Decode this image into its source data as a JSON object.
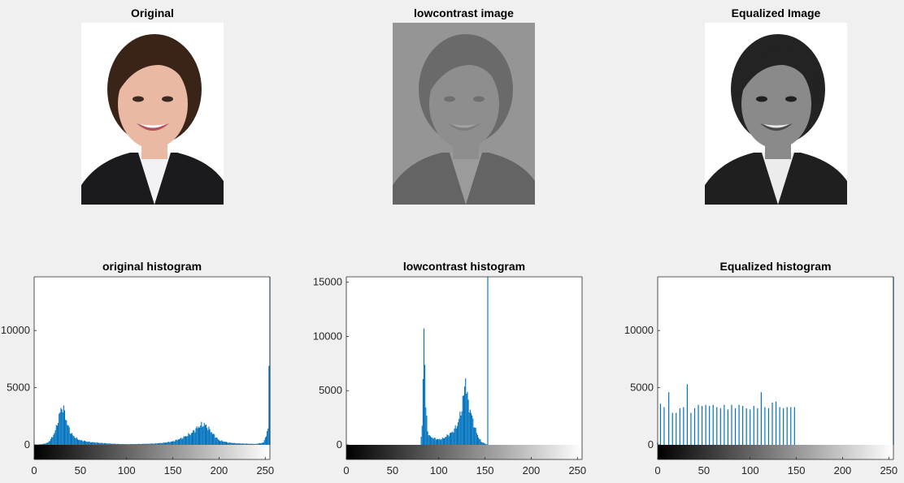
{
  "images": [
    {
      "title": "Original",
      "variant": "original"
    },
    {
      "title": "lowcontrast image",
      "variant": "lowcontrast"
    },
    {
      "title": "Equalized Image",
      "variant": "equalized"
    }
  ],
  "chart_data": [
    {
      "type": "bar",
      "title": "original histogram",
      "xlabel": "",
      "ylabel": "",
      "xlim": [
        0,
        255
      ],
      "ylim": [
        -800,
        14700
      ],
      "xticks": [
        0,
        50,
        100,
        150,
        200,
        250
      ],
      "yticks": [
        0,
        5000,
        10000
      ],
      "colorbar": "gray",
      "series": [
        {
          "points": [
            [
              0,
              0
            ],
            [
              10,
              80
            ],
            [
              15,
              200
            ],
            [
              20,
              700
            ],
            [
              24,
              1500
            ],
            [
              27,
              2500
            ],
            [
              29,
              3100
            ],
            [
              31,
              3300
            ],
            [
              33,
              2800
            ],
            [
              36,
              1800
            ],
            [
              40,
              1000
            ],
            [
              45,
              600
            ],
            [
              50,
              400
            ],
            [
              60,
              250
            ],
            [
              70,
              180
            ],
            [
              80,
              120
            ],
            [
              90,
              80
            ],
            [
              100,
              60
            ],
            [
              110,
              70
            ],
            [
              120,
              90
            ],
            [
              130,
              110
            ],
            [
              140,
              180
            ],
            [
              150,
              300
            ],
            [
              160,
              600
            ],
            [
              170,
              1000
            ],
            [
              175,
              1400
            ],
            [
              180,
              1700
            ],
            [
              184,
              1800
            ],
            [
              188,
              1500
            ],
            [
              193,
              1000
            ],
            [
              200,
              400
            ],
            [
              210,
              200
            ],
            [
              220,
              130
            ],
            [
              230,
              100
            ],
            [
              240,
              80
            ],
            [
              248,
              200
            ],
            [
              253,
              1300
            ],
            [
              255,
              14700
            ]
          ]
        }
      ]
    },
    {
      "type": "bar",
      "title": "lowcontrast histogram",
      "xlabel": "",
      "ylabel": "",
      "xlim": [
        0,
        255
      ],
      "ylim": [
        -800,
        15500
      ],
      "xticks": [
        0,
        50,
        100,
        150,
        200,
        250
      ],
      "yticks": [
        0,
        5000,
        10000,
        15000
      ],
      "colorbar": "gray",
      "series": [
        {
          "points": [
            [
              80,
              0
            ],
            [
              82,
              1500
            ],
            [
              84,
              11600
            ],
            [
              85,
              7200
            ],
            [
              86,
              3500
            ],
            [
              88,
              1300
            ],
            [
              90,
              800
            ],
            [
              95,
              600
            ],
            [
              100,
              500
            ],
            [
              105,
              600
            ],
            [
              110,
              900
            ],
            [
              115,
              1200
            ],
            [
              120,
              1800
            ],
            [
              124,
              3000
            ],
            [
              127,
              4500
            ],
            [
              129,
              6300
            ],
            [
              131,
              4300
            ],
            [
              133,
              3500
            ],
            [
              136,
              2600
            ],
            [
              139,
              1600
            ],
            [
              143,
              700
            ],
            [
              146,
              300
            ],
            [
              150,
              100
            ],
            [
              152,
              50
            ],
            [
              153,
              15500
            ]
          ]
        }
      ]
    },
    {
      "type": "bar",
      "title": "Equalized histogram",
      "xlabel": "",
      "ylabel": "",
      "xlim": [
        0,
        255
      ],
      "ylim": [
        -800,
        14700
      ],
      "xticks": [
        0,
        50,
        100,
        150,
        200,
        250
      ],
      "yticks": [
        0,
        5000,
        10000
      ],
      "colorbar": "gray",
      "series": [
        {
          "points": [
            [
              0,
              200
            ],
            [
              3,
              3600
            ],
            [
              7,
              3300
            ],
            [
              12,
              4600
            ],
            [
              16,
              2800
            ],
            [
              20,
              2800
            ],
            [
              24,
              3200
            ],
            [
              28,
              3300
            ],
            [
              32,
              5300
            ],
            [
              36,
              2800
            ],
            [
              40,
              3200
            ],
            [
              44,
              3500
            ],
            [
              48,
              3400
            ],
            [
              52,
              3500
            ],
            [
              56,
              3400
            ],
            [
              60,
              3500
            ],
            [
              64,
              3300
            ],
            [
              68,
              3200
            ],
            [
              72,
              3500
            ],
            [
              76,
              3100
            ],
            [
              80,
              3500
            ],
            [
              84,
              3200
            ],
            [
              88,
              3500
            ],
            [
              92,
              3400
            ],
            [
              96,
              3200
            ],
            [
              100,
              3100
            ],
            [
              104,
              3400
            ],
            [
              108,
              3200
            ],
            [
              112,
              4600
            ],
            [
              116,
              3300
            ],
            [
              120,
              3200
            ],
            [
              124,
              3700
            ],
            [
              128,
              3800
            ],
            [
              132,
              3300
            ],
            [
              136,
              3200
            ],
            [
              140,
              3300
            ],
            [
              144,
              3300
            ],
            [
              148,
              3300
            ],
            [
              255,
              14700
            ]
          ]
        }
      ]
    }
  ]
}
